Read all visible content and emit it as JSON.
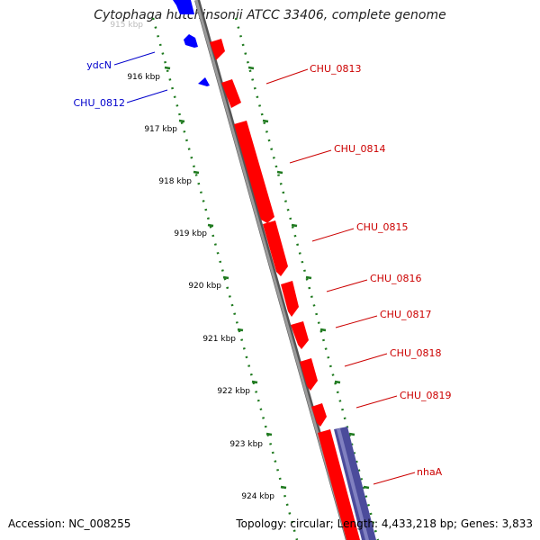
{
  "title": "Cytophaga hutchinsonii ATCC 33406, complete genome",
  "accession_text": "Accession: NC_008255",
  "summary_text": "Topology: circular; Length: 4,433,218 bp; Genes: 3,833",
  "colors": {
    "forward_gene": "#ff0000",
    "reverse_gene": "#0000ff",
    "other_feature": "#4b4b9b",
    "backbone": "#888888",
    "tick": "#1f7a1f",
    "forward_label": "#cc0000",
    "reverse_label": "#0000cc"
  },
  "tick_labels": [
    {
      "text": "915 kbp"
    },
    {
      "text": "916 kbp"
    },
    {
      "text": "917 kbp"
    },
    {
      "text": "918 kbp"
    },
    {
      "text": "919 kbp"
    },
    {
      "text": "920 kbp"
    },
    {
      "text": "921 kbp"
    },
    {
      "text": "922 kbp"
    },
    {
      "text": "923 kbp"
    },
    {
      "text": "924 kbp"
    }
  ],
  "forward_labels": [
    {
      "text": "CHU_0813"
    },
    {
      "text": "CHU_0814"
    },
    {
      "text": "CHU_0815"
    },
    {
      "text": "CHU_0816"
    },
    {
      "text": "CHU_0817"
    },
    {
      "text": "CHU_0818"
    },
    {
      "text": "CHU_0819"
    },
    {
      "text": "nhaA"
    }
  ],
  "reverse_labels": [
    {
      "text": "ydcN"
    },
    {
      "text": "CHU_0812"
    }
  ]
}
